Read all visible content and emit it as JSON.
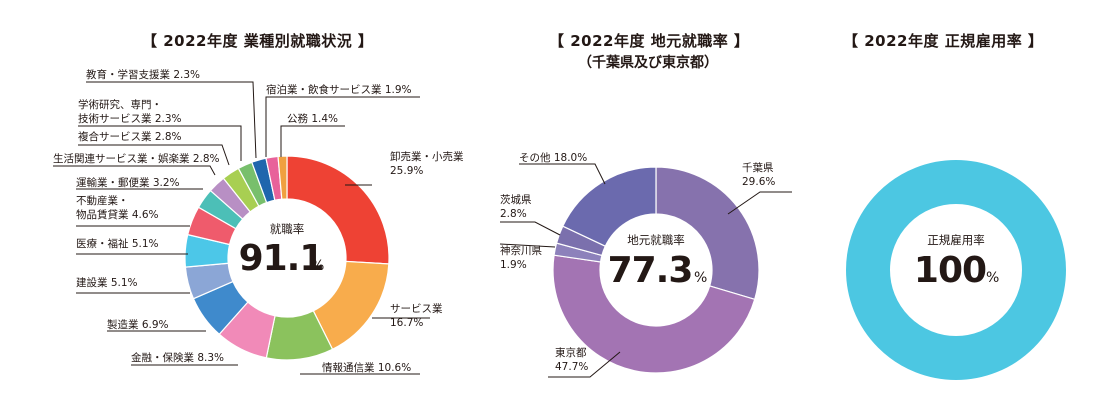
{
  "colors": {
    "text": "#231815",
    "leader_line": "#231815",
    "ring_full": "#4cc7e2"
  },
  "chart_data": [
    {
      "type": "donut",
      "title": "【 2022年度 業種別就職状況 】",
      "center_label": "就職率",
      "center_value": "91.1",
      "center_unit": "%",
      "slices": [
        {
          "label_lines": [
            "卸売業・小売業",
            "25.9%"
          ],
          "value": 25.9,
          "color": "#ee4234"
        },
        {
          "label_lines": [
            "サービス業",
            "16.7%"
          ],
          "value": 16.7,
          "color": "#f8ac4c"
        },
        {
          "label_lines": [
            "情報通信業 10.6%"
          ],
          "value": 10.6,
          "color": "#8bc25d"
        },
        {
          "label_lines": [
            "金融・保険業 8.3%"
          ],
          "value": 8.3,
          "color": "#f18ab8"
        },
        {
          "label_lines": [
            "製造業  6.9%"
          ],
          "value": 6.9,
          "color": "#3f8acc"
        },
        {
          "label_lines": [
            "建設業 5.1%"
          ],
          "value": 5.1,
          "color": "#8ba6d6"
        },
        {
          "label_lines": [
            "医療・福祉 5.1%"
          ],
          "value": 5.1,
          "color": "#4cc7e8"
        },
        {
          "label_lines": [
            "不動産業・",
            "物品賃貸業  4.6%"
          ],
          "value": 4.6,
          "color": "#ef5b6c"
        },
        {
          "label_lines": [
            "運輸業・郵便業 3.2%"
          ],
          "value": 3.2,
          "color": "#4cbfb7"
        },
        {
          "label_lines": [
            "生活関連サービス業・娯楽業 2.8%"
          ],
          "value": 2.8,
          "color": "#b88fc4"
        },
        {
          "label_lines": [
            "複合サービス業 2.8%"
          ],
          "value": 2.8,
          "color": "#a8cf52"
        },
        {
          "label_lines": [
            "学術研究、専門・",
            "技術サービス業 2.3%"
          ],
          "value": 2.3,
          "color": "#78bf6c"
        },
        {
          "label_lines": [
            "教育・学習支援業 2.3%"
          ],
          "value": 2.3,
          "color": "#1f66ad"
        },
        {
          "label_lines": [
            "宿泊業・飲食サービス業 1.9%"
          ],
          "value": 1.9,
          "color": "#e8629a"
        },
        {
          "label_lines": [
            "公務 1.4%"
          ],
          "value": 1.4,
          "color": "#f0a040"
        }
      ]
    },
    {
      "type": "donut",
      "title": "【 2022年度 地元就職率 】",
      "subtitle": "（千葉県及び東京都）",
      "center_label": "地元就職率",
      "center_value": "77.3",
      "center_unit": "%",
      "slices": [
        {
          "label_lines": [
            "千葉県",
            "29.6%"
          ],
          "value": 29.6,
          "color": "#8672ad"
        },
        {
          "label_lines": [
            "東京都",
            "47.7%"
          ],
          "value": 47.7,
          "color": "#a374b3"
        },
        {
          "label_lines": [
            "神奈川県",
            "1.9%"
          ],
          "value": 1.9,
          "color": "#8d81bb"
        },
        {
          "label_lines": [
            "茨城県",
            "2.8%"
          ],
          "value": 2.8,
          "color": "#7b70ad"
        },
        {
          "label_lines": [
            "その他 18.0%"
          ],
          "value": 18.0,
          "color": "#6b6aae"
        }
      ]
    },
    {
      "type": "donut",
      "title": "【 2022年度 正規雇用率 】",
      "center_label": "正規雇用率",
      "center_value": "100",
      "center_unit": "%",
      "slices": [
        {
          "label_lines": [],
          "value": 100,
          "color": "#4cc7e2"
        }
      ]
    }
  ]
}
